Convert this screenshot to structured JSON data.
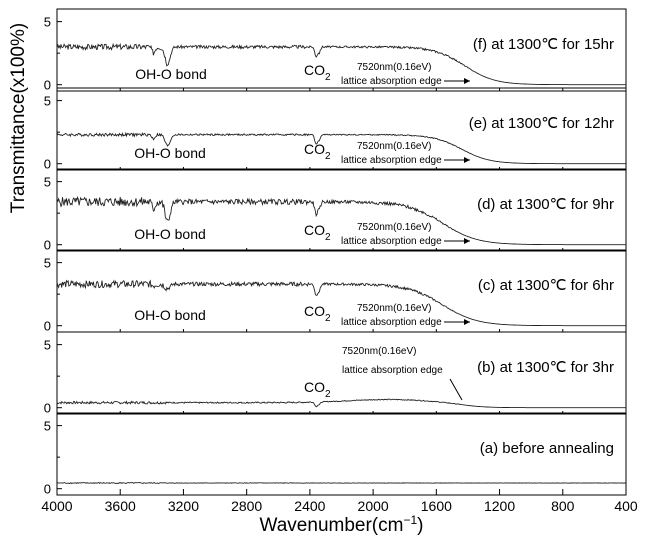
{
  "chart_data": {
    "type": "line",
    "x_axis": {
      "label_main": "Wavenumber(cm",
      "label_sup": "−1",
      "label_close": ")",
      "range": [
        4000,
        400
      ],
      "reversed": true,
      "ticks": [
        "4000",
        "3600",
        "3200",
        "2800",
        "2400",
        "2000",
        "1600",
        "1200",
        "800",
        "400"
      ]
    },
    "y_axis": {
      "label": "Transmittance(x100%)",
      "range_per_panel": [
        -0.5,
        6
      ],
      "ticks": [
        "0",
        "5"
      ]
    },
    "grid": false,
    "panels": [
      {
        "condition": "(f)  at 1300℃ for 15hr",
        "baseline": 3.0,
        "noise": 0.22,
        "edge": 1420,
        "width": 95,
        "ohDip": 1.35,
        "co2Dip": 0.75,
        "labels": {
          "oh": "OH-O bond",
          "co2": "CO",
          "co2_sub": "2",
          "edge_nm": "7520nm(0.16eV)",
          "edge_text": "lattice absorption edge"
        },
        "points": [
          {
            "x": 4000,
            "y": 3.0
          },
          {
            "x": 3600,
            "y": 3.0
          },
          {
            "x": 3300,
            "y": 1.8
          },
          {
            "x": 2800,
            "y": 3.0
          },
          {
            "x": 2360,
            "y": 2.3
          },
          {
            "x": 2000,
            "y": 2.8
          },
          {
            "x": 1600,
            "y": 1.6
          },
          {
            "x": 1400,
            "y": 0.1
          },
          {
            "x": 1000,
            "y": 0.0
          },
          {
            "x": 400,
            "y": 0.0
          }
        ]
      },
      {
        "condition": "(e)  at 1300℃ for 12hr",
        "baseline": 2.3,
        "noise": 0.12,
        "edge": 1440,
        "width": 90,
        "ohDip": 0.9,
        "co2Dip": 0.75,
        "labels": {
          "oh": "OH-O bond",
          "co2": "CO",
          "co2_sub": "2",
          "edge_nm": "7520nm(0.16eV)",
          "edge_text": "lattice absorption edge"
        },
        "points": [
          {
            "x": 4000,
            "y": 2.3
          },
          {
            "x": 3300,
            "y": 1.4
          },
          {
            "x": 2800,
            "y": 2.3
          },
          {
            "x": 2360,
            "y": 1.6
          },
          {
            "x": 1600,
            "y": 1.4
          },
          {
            "x": 1400,
            "y": 0.1
          },
          {
            "x": 400,
            "y": 0.0
          }
        ]
      },
      {
        "condition": "(d)  at 1300℃ for 9hr",
        "baseline": 3.4,
        "noise": 0.38,
        "edge": 1560,
        "width": 110,
        "ohDip": 1.6,
        "co2Dip": 1.0,
        "labels": {
          "oh": "OH-O bond",
          "co2": "CO",
          "co2_sub": "2",
          "edge_nm": "7520nm(0.16eV)",
          "edge_text": "lattice absorption edge"
        },
        "points": [
          {
            "x": 4000,
            "y": 3.5
          },
          {
            "x": 3600,
            "y": 3.3
          },
          {
            "x": 3300,
            "y": 1.8
          },
          {
            "x": 2800,
            "y": 3.4
          },
          {
            "x": 2360,
            "y": 2.4
          },
          {
            "x": 2000,
            "y": 2.9
          },
          {
            "x": 1600,
            "y": 1.3
          },
          {
            "x": 1400,
            "y": 0.1
          },
          {
            "x": 400,
            "y": 0.0
          }
        ]
      },
      {
        "condition": "(c)  at 1300℃ for 6hr",
        "baseline": 3.3,
        "noise": 0.28,
        "edge": 1560,
        "width": 110,
        "ohDip": 0.35,
        "co2Dip": 0.9,
        "labels": {
          "oh": "OH-O bond",
          "co2": "CO",
          "co2_sub": "2",
          "edge_nm": "7520nm(0.16eV)",
          "edge_text": "lattice absorption edge"
        },
        "points": [
          {
            "x": 4000,
            "y": 3.3
          },
          {
            "x": 3300,
            "y": 3.0
          },
          {
            "x": 2800,
            "y": 3.3
          },
          {
            "x": 2360,
            "y": 2.4
          },
          {
            "x": 2000,
            "y": 3.0
          },
          {
            "x": 1600,
            "y": 1.6
          },
          {
            "x": 1400,
            "y": 0.1
          },
          {
            "x": 400,
            "y": 0.0
          }
        ]
      },
      {
        "condition": "(b)  at 1300℃ for 3hr",
        "baseline": 0.4,
        "noise": 0.1,
        "edge": 1450,
        "width": 80,
        "ohDip": 0.0,
        "co2Dip": 0.35,
        "labels": {
          "co2": "CO",
          "co2_sub": "2",
          "edge_nm": "7520nm(0.16eV)",
          "edge_text": "lattice absorption edge"
        },
        "points": [
          {
            "x": 4000,
            "y": 0.4
          },
          {
            "x": 2360,
            "y": 0.2
          },
          {
            "x": 1800,
            "y": 0.8
          },
          {
            "x": 1500,
            "y": 0.4
          },
          {
            "x": 1400,
            "y": 0.0
          },
          {
            "x": 400,
            "y": 0.0
          }
        ]
      },
      {
        "condition": "(a)  before annealing",
        "baseline": 0.45,
        "noise": 0.04,
        "edge": null,
        "width": 0,
        "ohDip": 0.0,
        "co2Dip": 0.0,
        "labels": {},
        "points": [
          {
            "x": 4000,
            "y": 0.45
          },
          {
            "x": 2000,
            "y": 0.45
          },
          {
            "x": 400,
            "y": 0.45
          }
        ]
      }
    ]
  }
}
